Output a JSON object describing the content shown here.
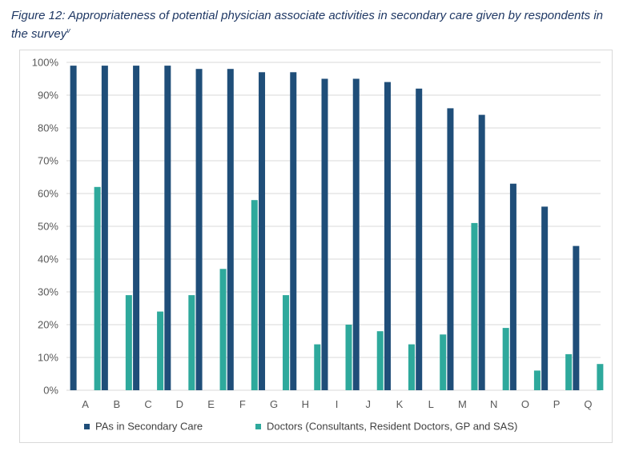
{
  "caption": {
    "text": "Figure 12: Appropriateness of potential physician associate activities in secondary care given by respondents in the survey",
    "superscript": "v"
  },
  "colors": {
    "series1": "#1f4e79",
    "series2": "#2ea99c",
    "grid": "#d9d9d9",
    "axis_text": "#595959"
  },
  "chart_data": {
    "type": "bar",
    "title": "",
    "xlabel": "",
    "ylabel": "",
    "ylim": [
      0,
      100
    ],
    "y_ticks": [
      "0%",
      "10%",
      "20%",
      "30%",
      "40%",
      "50%",
      "60%",
      "70%",
      "80%",
      "90%",
      "100%"
    ],
    "categories": [
      "A",
      "B",
      "C",
      "D",
      "E",
      "F",
      "G",
      "H",
      "I",
      "J",
      "K",
      "L",
      "M",
      "N",
      "O",
      "P",
      "Q"
    ],
    "series": [
      {
        "name": "PAs in Secondary Care",
        "values": [
          99,
          99,
          99,
          99,
          98,
          98,
          97,
          97,
          95,
          95,
          94,
          92,
          86,
          84,
          63,
          56,
          44
        ]
      },
      {
        "name": "Doctors (Consultants, Resident Doctors, GP and SAS)",
        "values": [
          62,
          29,
          24,
          29,
          37,
          58,
          29,
          14,
          20,
          18,
          14,
          17,
          51,
          19,
          6,
          11,
          8
        ]
      }
    ],
    "grid": true,
    "legend_position": "bottom"
  }
}
